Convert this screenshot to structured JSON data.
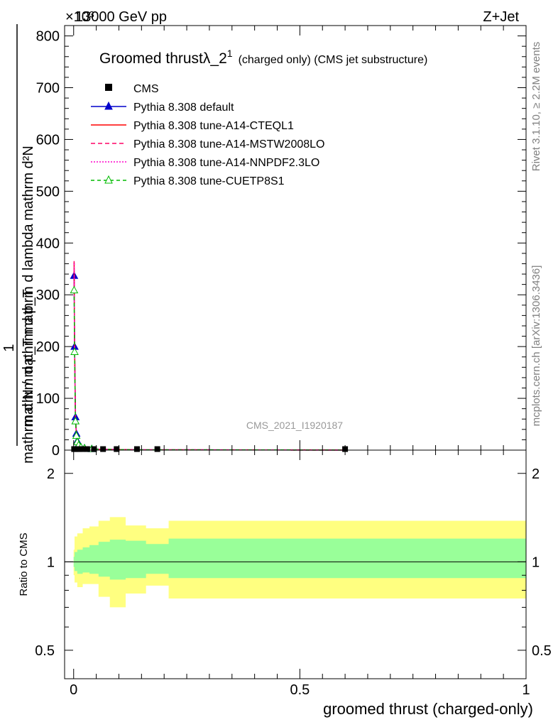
{
  "header": {
    "left": "13000 GeV pp",
    "right": "Z+Jet",
    "multiplier": "×10³"
  },
  "side_labels": {
    "rivet": "Rivet 3.1.10, ≥ 2.2M events",
    "mcplots": "mcplots.cern.ch [arXiv:1306.3436]"
  },
  "analysis_id": "CMS_2021_I1920187",
  "chart_data": [
    {
      "type": "line",
      "title": "Groomed thrustλ_2¹ (charged only) (CMS jet substructure)",
      "title_main": "Groomed thrustλ_2",
      "title_sup": "1",
      "title_rest": "(charged only) (CMS jet substructure)",
      "ylabel_num": "mathrm d²N",
      "ylabel_num_sub": "mathrm d p_T mathrm d lambda",
      "ylabel_den": "mathrm d N / mathrm d p_T",
      "ylabel_one": "1",
      "yticks": [
        "0",
        "100",
        "200",
        "300",
        "400",
        "500",
        "600",
        "700",
        "800"
      ],
      "ylim": [
        0,
        820
      ],
      "xlim": [
        -0.02,
        1.0
      ],
      "legend_position": "top-left",
      "series": [
        {
          "name": "CMS",
          "style": "marker-square",
          "color": "#000000",
          "x": [
            0.001,
            0.004,
            0.008,
            0.013,
            0.02,
            0.03,
            0.045,
            0.065,
            0.095,
            0.14,
            0.185,
            0.6
          ],
          "y": [
            2,
            2,
            2,
            2,
            2,
            2,
            2,
            2,
            2,
            2,
            2,
            2
          ]
        },
        {
          "name": "Pythia 8.308 default",
          "style": "line-triangle",
          "color": "#0000cc",
          "x": [
            0.001,
            0.002,
            0.004,
            0.006,
            0.008,
            0.011,
            0.016,
            0.024,
            0.04,
            0.06,
            0.1,
            0.15,
            0.185,
            0.6
          ],
          "y": [
            337,
            200,
            64,
            32,
            18,
            11,
            6,
            4,
            2.5,
            1.5,
            1,
            0.6,
            0.5,
            0.1
          ]
        },
        {
          "name": "Pythia 8.308 tune-A14-CTEQL1",
          "style": "line",
          "color": "#ff0000",
          "x": [
            0.001,
            0.002,
            0.004,
            0.006,
            0.008,
            0.011,
            0.016,
            0.024,
            0.04,
            0.06,
            0.1,
            0.15,
            0.185,
            0.6
          ],
          "y": [
            362,
            210,
            62,
            30,
            17,
            10,
            6,
            4,
            2.5,
            1.5,
            1,
            0.6,
            0.5,
            0.1
          ]
        },
        {
          "name": "Pythia 8.308 tune-A14-MSTW2008LO",
          "style": "dashed",
          "color": "#ff0066",
          "x": [
            0.001,
            0.002,
            0.004,
            0.006,
            0.008,
            0.011,
            0.016,
            0.024,
            0.04,
            0.06,
            0.1,
            0.15,
            0.185,
            0.6
          ],
          "y": [
            365,
            212,
            61,
            30,
            17,
            10,
            6,
            4,
            2.5,
            1.5,
            1,
            0.6,
            0.5,
            0.1
          ]
        },
        {
          "name": "Pythia 8.308 tune-A14-NNPDF2.3LO",
          "style": "dotted",
          "color": "#ff00cc",
          "x": [
            0.001,
            0.002,
            0.004,
            0.006,
            0.008,
            0.011,
            0.016,
            0.024,
            0.04,
            0.06,
            0.1,
            0.15,
            0.185,
            0.6
          ],
          "y": [
            360,
            208,
            62,
            30,
            17,
            10,
            6,
            4,
            2.5,
            1.5,
            1,
            0.6,
            0.5,
            0.1
          ]
        },
        {
          "name": "Pythia 8.308 tune-CUETP8S1",
          "style": "dashed-triangle-open",
          "color": "#00bb00",
          "x": [
            0.001,
            0.002,
            0.004,
            0.006,
            0.008,
            0.011,
            0.016,
            0.024,
            0.04,
            0.06,
            0.1,
            0.15,
            0.185,
            0.6
          ],
          "y": [
            309,
            190,
            56,
            28,
            16,
            10,
            6,
            4,
            2.5,
            1.5,
            1,
            0.6,
            0.5,
            0.1
          ]
        }
      ]
    },
    {
      "type": "area",
      "ylabel": "Ratio to CMS",
      "xlabel": "groomed thrust (charged-only)",
      "xticks": [
        "0",
        "0.5",
        "1"
      ],
      "yticks": [
        "0.5",
        "1",
        "2"
      ],
      "ylim": [
        0.4,
        2.4
      ],
      "xlim": [
        -0.02,
        1.0
      ],
      "reference_line": 1,
      "bands": [
        {
          "name": "stat+syst",
          "color": "#ffff80",
          "edges": [
            0,
            0.002,
            0.008,
            0.02,
            0.035,
            0.055,
            0.08,
            0.115,
            0.16,
            0.21,
            1.0
          ],
          "lo": [
            0.9,
            0.85,
            0.82,
            0.84,
            0.84,
            0.76,
            0.7,
            0.78,
            0.83,
            0.75
          ],
          "hi": [
            1.1,
            1.22,
            1.25,
            1.3,
            1.32,
            1.38,
            1.42,
            1.33,
            1.3,
            1.38
          ]
        },
        {
          "name": "stat",
          "color": "#99ff99",
          "edges": [
            0,
            0.002,
            0.008,
            0.02,
            0.035,
            0.055,
            0.08,
            0.115,
            0.16,
            0.21,
            1.0
          ],
          "lo": [
            0.96,
            0.93,
            0.91,
            0.92,
            0.91,
            0.89,
            0.87,
            0.88,
            0.91,
            0.88
          ],
          "hi": [
            1.04,
            1.08,
            1.1,
            1.12,
            1.14,
            1.17,
            1.19,
            1.18,
            1.15,
            1.2
          ]
        }
      ]
    }
  ]
}
